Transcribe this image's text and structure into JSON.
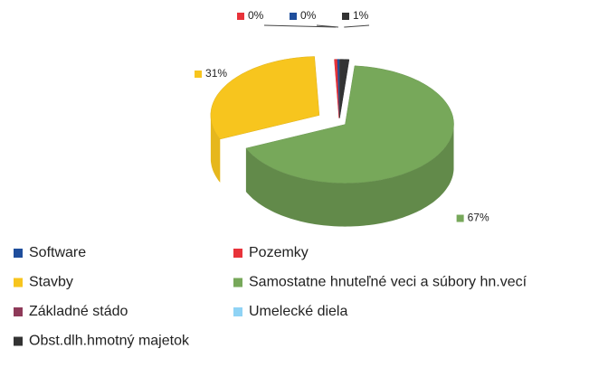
{
  "chart_data": {
    "type": "pie",
    "categories": [
      "Software",
      "Pozemky",
      "Stavby",
      "Samostatne hnuteľné veci a súbory hn.vecí",
      "Základné stádo",
      "Umelecké diela",
      "Obst.dlh.hmotný majetok"
    ],
    "values": [
      0.3,
      0.4,
      31,
      67,
      0,
      0,
      1.4
    ],
    "value_labels": [
      "0%",
      "0%",
      "31%",
      "67%",
      null,
      null,
      "1%"
    ],
    "colors": [
      "#1f4e9c",
      "#e8333a",
      "#f7c51e",
      "#77a85a",
      "#8e3a59",
      "#8fd3f5",
      "#333333"
    ],
    "legend": "bottom"
  }
}
